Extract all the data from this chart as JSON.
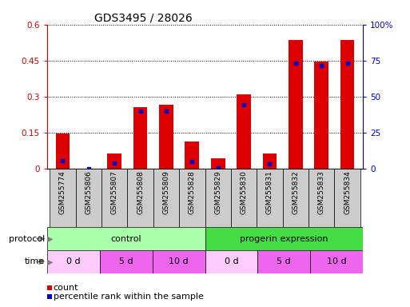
{
  "title": "GDS3495 / 28026",
  "samples": [
    "GSM255774",
    "GSM255806",
    "GSM255807",
    "GSM255808",
    "GSM255809",
    "GSM255828",
    "GSM255829",
    "GSM255830",
    "GSM255831",
    "GSM255832",
    "GSM255833",
    "GSM255834"
  ],
  "count_values": [
    0.148,
    0.0,
    0.065,
    0.255,
    0.265,
    0.115,
    0.045,
    0.31,
    0.065,
    0.535,
    0.445,
    0.535
  ],
  "percentile_values_scaled": [
    0.035,
    0.0,
    0.025,
    0.24,
    0.24,
    0.03,
    0.005,
    0.265,
    0.02,
    0.44,
    0.43,
    0.44
  ],
  "ylim_left": [
    0,
    0.6
  ],
  "ylim_right": [
    0,
    100
  ],
  "yticks_left": [
    0,
    0.15,
    0.3,
    0.45,
    0.6
  ],
  "yticks_left_labels": [
    "0",
    "0.15",
    "0.3",
    "0.45",
    "0.6"
  ],
  "yticks_right": [
    0,
    25,
    50,
    75,
    100
  ],
  "yticks_right_labels": [
    "0",
    "25",
    "50",
    "75",
    "100%"
  ],
  "bar_color": "#dd0000",
  "percentile_color": "#0000cc",
  "bg_color": "#ffffff",
  "protocol_row": [
    {
      "label": "control",
      "start": 0,
      "end": 6,
      "color": "#aaffaa"
    },
    {
      "label": "progerin expression",
      "start": 6,
      "end": 12,
      "color": "#44dd44"
    }
  ],
  "time_row": [
    {
      "label": "0 d",
      "start": 0,
      "end": 2,
      "color": "#ffccff"
    },
    {
      "label": "5 d",
      "start": 2,
      "end": 4,
      "color": "#ee66ee"
    },
    {
      "label": "10 d",
      "start": 4,
      "end": 6,
      "color": "#ee66ee"
    },
    {
      "label": "0 d",
      "start": 6,
      "end": 8,
      "color": "#ffccff"
    },
    {
      "label": "5 d",
      "start": 8,
      "end": 10,
      "color": "#ee66ee"
    },
    {
      "label": "10 d",
      "start": 10,
      "end": 12,
      "color": "#ee66ee"
    }
  ],
  "left_axis_color": "#cc0000",
  "right_axis_color": "#0000cc",
  "bar_width": 0.55,
  "sample_bg_color": "#cccccc",
  "legend_count_color": "#dd0000",
  "legend_pct_color": "#0000cc"
}
